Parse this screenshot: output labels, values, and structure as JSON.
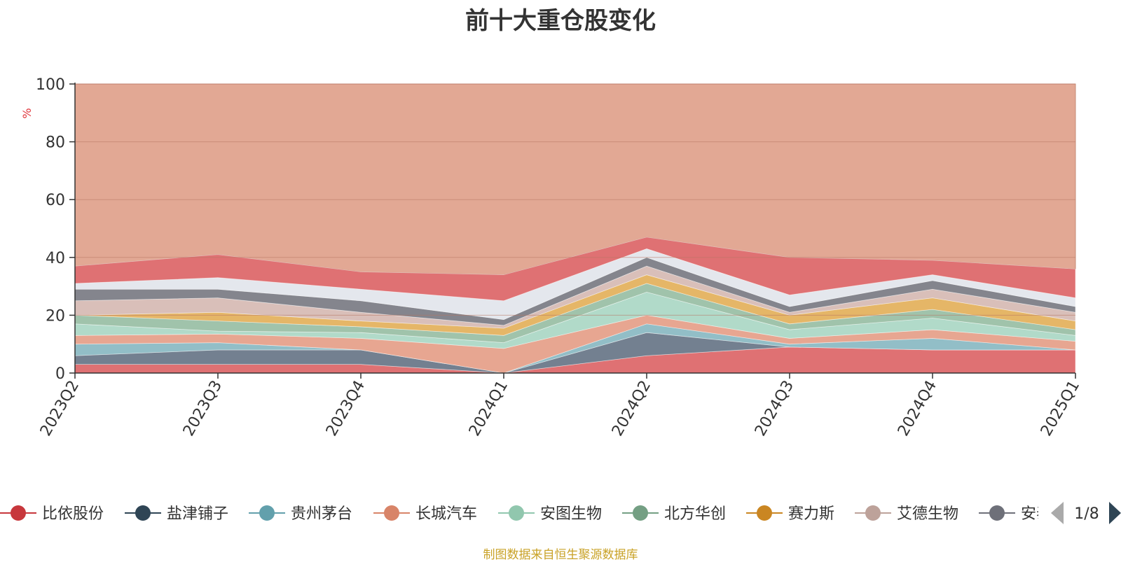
{
  "chart_data": {
    "type": "area",
    "title": "前十大重仓股变化",
    "ylabel": "%",
    "ylim": [
      0,
      100
    ],
    "yticks": [
      "0",
      "20",
      "40",
      "60",
      "80",
      "100"
    ],
    "categories": [
      "2023Q2",
      "2023Q3",
      "2023Q4",
      "2024Q1",
      "2024Q2",
      "2024Q3",
      "2024Q4",
      "2025Q1"
    ],
    "stacked": true,
    "grid": true,
    "legend_position": "bottom",
    "series": [
      {
        "name": "比依股份",
        "color": "#d9585a",
        "values": [
          3,
          0,
          0,
          0,
          0,
          0,
          0,
          0
        ]
      },
      {
        "name": "盐津铺子",
        "color": "#5a6a7d",
        "values": [
          0,
          0,
          0,
          0,
          6,
          0,
          0,
          0
        ]
      },
      {
        "name": "贵州茅台",
        "color": "#7fb3bd",
        "values": [
          0,
          8,
          8,
          0,
          8,
          9,
          8,
          8
        ]
      },
      {
        "name": "长城汽车",
        "color": "#e3967e",
        "values": [
          0,
          0,
          0,
          0,
          3,
          0,
          0,
          0
        ]
      },
      {
        "name": "安图生物",
        "color": "#a3d4bf",
        "values": [
          0,
          0,
          0,
          0,
          3,
          0,
          0,
          0
        ]
      },
      {
        "name": "北方华创",
        "color": "#8fb89c",
        "values": [
          0,
          0,
          0,
          0,
          0,
          2,
          3,
          0
        ]
      },
      {
        "name": "赛力斯",
        "color": "#e0a94c",
        "values": [
          0,
          0,
          0,
          0,
          0,
          0,
          3,
          0
        ]
      },
      {
        "name": "艾德生物",
        "color": "#d2b4ad",
        "values": [
          0,
          3,
          0,
          0,
          0,
          0,
          0,
          0
        ]
      }
    ],
    "remainder_series_colors": [
      "#d9585a",
      "#5a6a7d",
      "#7fb3bd",
      "#e3967e",
      "#a3d4bf",
      "#8fb89c",
      "#e0a94c",
      "#d2b4ad",
      "#6e7079",
      "#dfe3ea"
    ],
    "stack_tops": [
      [
        3,
        3,
        3,
        0,
        6,
        9,
        8,
        8
      ],
      [
        6,
        8,
        8,
        0,
        14,
        9,
        8,
        8
      ],
      [
        10,
        10.5,
        8,
        0,
        17,
        10,
        12,
        8
      ],
      [
        13,
        13.5,
        12,
        8.5,
        20,
        12,
        15,
        11
      ],
      [
        17,
        14.5,
        14,
        10.5,
        28,
        15,
        19,
        13
      ],
      [
        20,
        18,
        16,
        13,
        31,
        17,
        22,
        15
      ],
      [
        20,
        21,
        18,
        15.5,
        34,
        20,
        26,
        18
      ],
      [
        25,
        26,
        21,
        16.5,
        37,
        21,
        29,
        21
      ],
      [
        29,
        29,
        25,
        18.5,
        40,
        23,
        32,
        23
      ],
      [
        31,
        33,
        29,
        25,
        43,
        27,
        34,
        26
      ],
      [
        37,
        41,
        35,
        34,
        47,
        40,
        39,
        36
      ]
    ],
    "total_color": "#e2a894"
  },
  "legend": {
    "items": [
      {
        "label": "比依股份",
        "color": "#c7373c"
      },
      {
        "label": "盐津铺子",
        "color": "#2f4555"
      },
      {
        "label": "贵州茅台",
        "color": "#62a0ac"
      },
      {
        "label": "长城汽车",
        "color": "#d88468"
      },
      {
        "label": "安图生物",
        "color": "#91c7ae"
      },
      {
        "label": "北方华创",
        "color": "#749f83"
      },
      {
        "label": "赛力斯",
        "color": "#ca8622"
      },
      {
        "label": "艾德生物",
        "color": "#bda29a"
      },
      {
        "label": "安泰",
        "color": "#6e7079"
      }
    ],
    "page": "1/8"
  },
  "footer": "制图数据来自恒生聚源数据库"
}
